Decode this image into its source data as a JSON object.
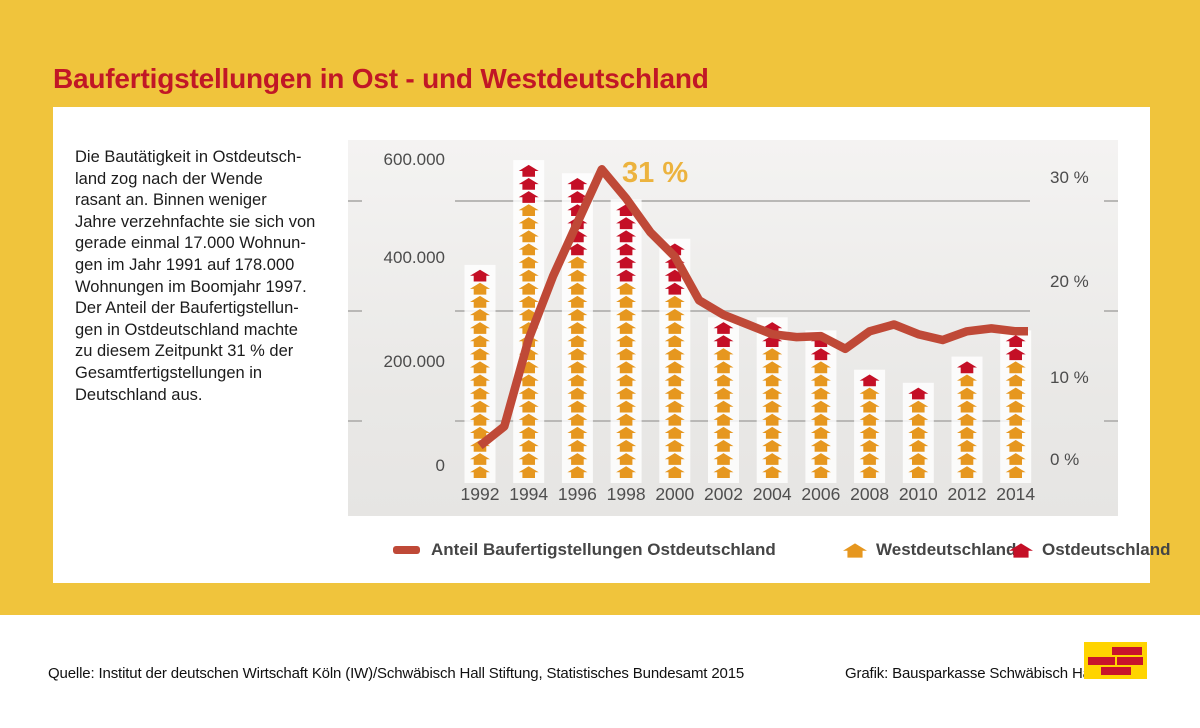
{
  "header": {
    "title": "Baufertigstellungen in Ost - und Westdeutschland"
  },
  "intro": {
    "lines": [
      "Die Bautätigkeit in Ostdeutsch-",
      "land zog nach der Wende",
      "rasant an. Binnen weniger",
      "Jahre verzehnfachte sie sich von",
      "gerade einmal 17.000 Wohnun-",
      "gen im Jahr 1991 auf 178.000",
      "Wohnungen im Boomjahr 1997.",
      "Der Anteil der Baufertigstellun-",
      "gen in Ostdeutschland machte",
      "zu diesem Zeitpunkt 31 % der",
      "Gesamtfertigstellungen in",
      "Deutschland aus."
    ]
  },
  "chart_data": {
    "type": "pictogram-bar-with-line",
    "title": "",
    "categories": [
      "1992",
      "1994",
      "1996",
      "1998",
      "2000",
      "2002",
      "2004",
      "2006",
      "2008",
      "2010",
      "2012",
      "2014"
    ],
    "pictogram_unit": "house-icon",
    "series": [
      {
        "name": "Westdeutschland",
        "type": "pictogram",
        "color": "#E6971F",
        "house_counts": [
          15,
          21,
          17,
          15,
          14,
          10,
          10,
          9,
          7,
          6,
          8,
          9
        ]
      },
      {
        "name": "Ostdeutschland",
        "type": "pictogram",
        "color": "#C40F26",
        "house_counts": [
          1,
          3,
          6,
          6,
          4,
          2,
          2,
          2,
          1,
          1,
          1,
          2
        ]
      },
      {
        "name": "Anteil Baufertigstellungen Ostdeutschland",
        "type": "line",
        "color": "#BF4937",
        "years": [
          1992,
          1993,
          1994,
          1995,
          1996,
          1997,
          1998,
          1999,
          2000,
          2001,
          2002,
          2003,
          2004,
          2005,
          2006,
          2007,
          2008,
          2009,
          2010,
          2011,
          2012,
          2013,
          2014
        ],
        "values_percent": [
          2.5,
          4.5,
          13.5,
          20,
          25.5,
          31,
          28,
          24.5,
          22,
          17.5,
          16,
          15,
          14,
          13.7,
          13.8,
          12.5,
          14.3,
          15,
          14,
          13.4,
          14.3,
          14.6,
          14.3
        ]
      }
    ],
    "left_axis": {
      "tick_labels": [
        "600.000",
        "400.000",
        "200.000",
        "0"
      ],
      "range": [
        0,
        600000
      ]
    },
    "right_axis": {
      "tick_labels": [
        "30 %",
        "20 %",
        "10 %",
        "0 %"
      ],
      "range_percent": [
        0,
        30
      ]
    },
    "annotation": {
      "text": "31 %",
      "year": 1997,
      "value_percent": 31
    },
    "grid": "horizontal",
    "legend_position": "bottom"
  },
  "legend": {
    "items": [
      {
        "label": "Anteil Baufertigstellungen Ostdeutschland",
        "swatch": "line"
      },
      {
        "label": "Westdeutschland",
        "swatch": "house-orange"
      },
      {
        "label": "Ostdeutschland",
        "swatch": "house-red"
      }
    ]
  },
  "footer": {
    "source": "Quelle: Institut der deutschen Wirtschaft Köln (IW)/Schwäbisch Hall Stiftung, Statistisches Bundesamt 2015",
    "credit": "Grafik: Bausparkasse Schwäbisch Hall",
    "logo": "schwaebisch-hall-logo"
  },
  "colors": {
    "frame_yellow": "#F0C43C",
    "title_red": "#C11726",
    "house_orange": "#E6971F",
    "house_red": "#C40F26",
    "line_red": "#BF4937",
    "logo_yellow": "#FFD400",
    "logo_brick": "#C8142B"
  }
}
